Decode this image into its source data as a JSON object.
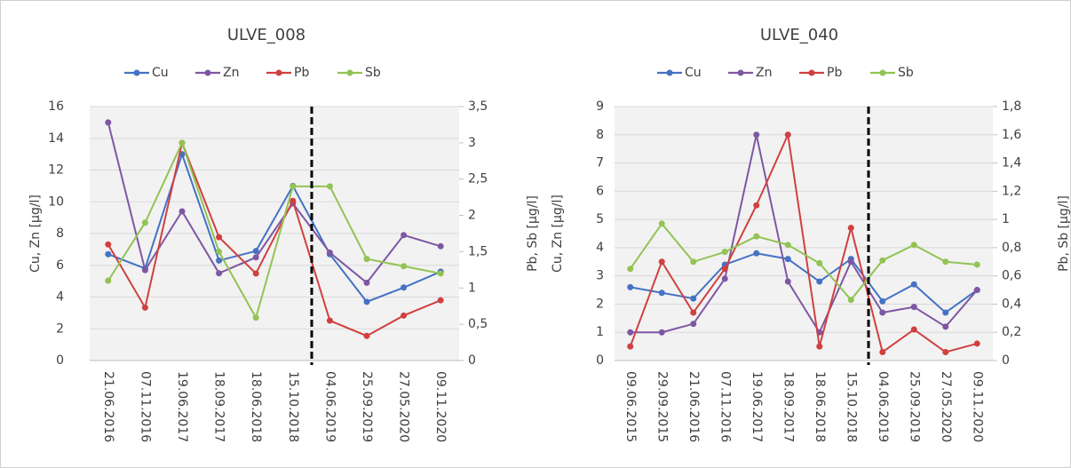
{
  "chart_data": [
    {
      "type": "line",
      "title": "ULVE_008",
      "ylabel": "Cu, Zn [µg/l]",
      "y2label": "Pb, Sb [µg/l]",
      "categories": [
        "21.06.2016",
        "07.11.2016",
        "19.06.2017",
        "18.09.2017",
        "18.06.2018",
        "15.10.2018",
        "04.06.2019",
        "25.09.2019",
        "27.05.2020",
        "09.11.2020"
      ],
      "ylim": [
        0,
        16
      ],
      "yticks": [
        0,
        2,
        4,
        6,
        8,
        10,
        12,
        14,
        16
      ],
      "y2lim": [
        0,
        3.5
      ],
      "y2ticks": [
        0,
        {
          "value": 0.5,
          "label": "0,5"
        },
        1,
        {
          "value": 1.5,
          "label": "1,5"
        },
        2,
        {
          "value": 2.5,
          "label": "2,5"
        },
        3,
        {
          "value": 3.5,
          "label": "3,5"
        }
      ],
      "grid": true,
      "series": [
        {
          "name": "Cu",
          "color": "#4472c4",
          "values": [
            6.7,
            5.8,
            13.0,
            6.3,
            6.9,
            11.0,
            6.7,
            3.7,
            4.6,
            5.6
          ]
        },
        {
          "name": "Zn",
          "color": "#7e57a3",
          "values": [
            15.0,
            5.7,
            9.4,
            5.5,
            6.5,
            9.9,
            6.8,
            4.9,
            7.9,
            7.2
          ]
        },
        {
          "name": "Pb",
          "color": "#d04040",
          "axis": "y2",
          "values": [
            1.6,
            0.73,
            3.0,
            1.7,
            1.2,
            2.2,
            0.55,
            0.34,
            0.62,
            0.83
          ]
        },
        {
          "name": "Sb",
          "color": "#92c353",
          "axis": "y2",
          "values": [
            1.1,
            1.9,
            3.0,
            1.5,
            0.59,
            2.4,
            2.4,
            1.4,
            1.3,
            1.2
          ]
        }
      ]
    },
    {
      "type": "line",
      "title": "ULVE_040",
      "ylabel": "Cu, Zn [µg/l]",
      "y2label": "Pb, Sb [µg/l]",
      "categories": [
        "09.06.2015",
        "29.09.2015",
        "21.06.2016",
        "07.11.2016",
        "19.06.2017",
        "18.09.2017",
        "18.06.2018",
        "15.10.2018",
        "04.06.2019",
        "25.09.2019",
        "27.05.2020",
        "09.11.2020"
      ],
      "ylim": [
        0,
        9
      ],
      "yticks": [
        0,
        1,
        2,
        3,
        4,
        5,
        6,
        7,
        8,
        9
      ],
      "y2lim": [
        0,
        1.8
      ],
      "y2ticks": [
        0,
        {
          "value": 0.2,
          "label": "0,2"
        },
        {
          "value": 0.4,
          "label": "0,4"
        },
        {
          "value": 0.6,
          "label": "0,6"
        },
        {
          "value": 0.8,
          "label": "0,8"
        },
        1,
        {
          "value": 1.2,
          "label": "1,2"
        },
        {
          "value": 1.4,
          "label": "1,4"
        },
        {
          "value": 1.6,
          "label": "1,6"
        },
        {
          "value": 1.8,
          "label": "1,8"
        }
      ],
      "grid": true,
      "series": [
        {
          "name": "Cu",
          "color": "#4472c4",
          "values": [
            2.6,
            2.4,
            2.2,
            3.4,
            3.8,
            3.6,
            2.8,
            3.6,
            2.1,
            2.7,
            1.7,
            2.5
          ]
        },
        {
          "name": "Zn",
          "color": "#7e57a3",
          "values": [
            1.0,
            1.0,
            1.3,
            2.9,
            8.0,
            2.8,
            1.0,
            3.5,
            1.7,
            1.9,
            1.2,
            2.5
          ]
        },
        {
          "name": "Pb",
          "color": "#d04040",
          "axis": "y2",
          "values": [
            0.1,
            0.7,
            0.34,
            0.65,
            1.1,
            1.6,
            0.1,
            0.94,
            0.06,
            0.22,
            0.06,
            0.12
          ]
        },
        {
          "name": "Sb",
          "color": "#92c353",
          "axis": "y2",
          "values": [
            0.65,
            0.97,
            0.7,
            0.77,
            0.88,
            0.82,
            0.69,
            0.43,
            0.71,
            0.82,
            0.7,
            0.68
          ]
        }
      ]
    }
  ]
}
